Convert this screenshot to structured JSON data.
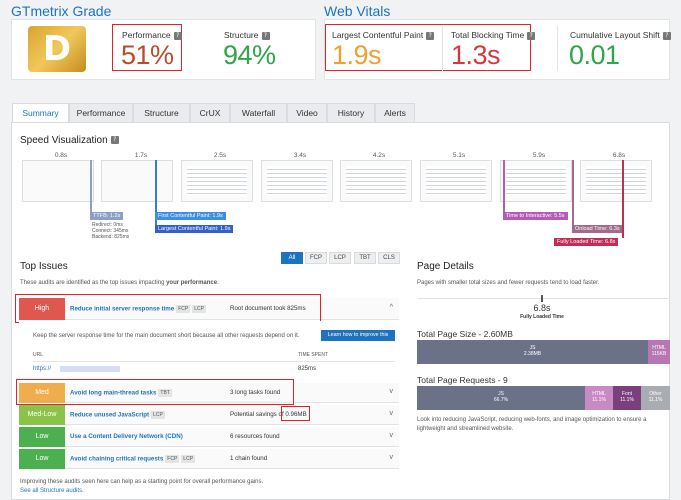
{
  "grade": {
    "title": "GTmetrix Grade",
    "letter": "D",
    "performance_label": "Performance",
    "performance_value": "51%",
    "structure_label": "Structure",
    "structure_value": "94%"
  },
  "vitals": {
    "title": "Web Vitals",
    "lcp_label": "Largest Contentful Paint",
    "lcp_value": "1.9s",
    "tbt_label": "Total Blocking Time",
    "tbt_value": "1.3s",
    "cls_label": "Cumulative Layout Shift",
    "cls_value": "0.01"
  },
  "tabs": [
    "Summary",
    "Performance",
    "Structure",
    "CrUX",
    "Waterfall",
    "Video",
    "History",
    "Alerts"
  ],
  "speed": {
    "title": "Speed Visualization",
    "times": [
      "0.8s",
      "1.7s",
      "2.5s",
      "3.4s",
      "4.2s",
      "5.1s",
      "5.9s",
      "6.8s"
    ],
    "ttfb": "TTFB: 1.2s",
    "ttfb_details": [
      "Redirect: 0ms",
      "Connect: 345ms",
      "Backend: 825ms"
    ],
    "fcp": "First Contentful Paint: 1.9s",
    "lcp": "Largest Contentful Paint: 1.9s",
    "tti": "Time to Interactive: 5.5s",
    "onload": "Onload Time: 6.3s",
    "fully": "Fully Loaded Time: 6.8s"
  },
  "issues": {
    "title": "Top Issues",
    "desc_pre": "These audits are identified as the top issues impacting ",
    "desc_bold": "your performance",
    "desc_post": ".",
    "filters": [
      "All",
      "FCP",
      "LCP",
      "TBT",
      "CLS"
    ],
    "rows": [
      {
        "sev": "High",
        "title": "Reduce initial server response time",
        "tags": [
          "FCP",
          "LCP"
        ],
        "result": "Root document took 825ms",
        "color": "#e0574f",
        "chev": "^"
      },
      {
        "sev": "Med",
        "title": "Avoid long main-thread tasks",
        "tags": [
          "TBT"
        ],
        "result": "3 long tasks found",
        "color": "#f0ad4e",
        "chev": "v"
      },
      {
        "sev": "Med-Low",
        "title": "Reduce unused JavaScript",
        "tags": [
          "LCP"
        ],
        "result": "Potential savings of 0.96MB",
        "color": "#8bc34a",
        "chev": "v"
      },
      {
        "sev": "Low",
        "title": "Use a Content Delivery Network (CDN)",
        "tags": [],
        "result": "6 resources found",
        "color": "#4caf50",
        "chev": "v"
      },
      {
        "sev": "Low",
        "title": "Avoid chaining critical requests",
        "tags": [
          "FCP",
          "LCP"
        ],
        "result": "1 chain found",
        "color": "#4caf50",
        "chev": "v"
      }
    ],
    "expand_text": "Keep the server response time for the main document short because all other requests depend on it.",
    "learn_btn": "Learn how to improve this",
    "col_url": "URL",
    "col_time": "TIME SPENT",
    "url_value": "https://",
    "time_value": "825ms",
    "footer": "Improving these audits seen here can help as a starting point for overall performance gains.",
    "footer_link": "See all Structure audits."
  },
  "details": {
    "title": "Page Details",
    "desc": "Pages with smaller total sizes and fewer requests tend to load faster.",
    "fully_value": "6.8s",
    "fully_label": "Fully Loaded Time",
    "size_title": "Total Page Size - 2.60MB",
    "size_js": "JS",
    "size_js_val": "2.38MB",
    "size_html": "HTML",
    "size_html_val": "115KB",
    "req_title": "Total Page Requests - 9",
    "req_js": "JS",
    "req_js_val": "66.7%",
    "req_html": "HTML",
    "req_html_val": "11.1%",
    "req_font": "Font",
    "req_font_val": "11.1%",
    "req_other": "Other",
    "req_other_val": "11.1%",
    "footer": "Look into reducing JavaScript, reducing web-fonts, and image optimization to ensure a lightweight and streamlined website."
  }
}
